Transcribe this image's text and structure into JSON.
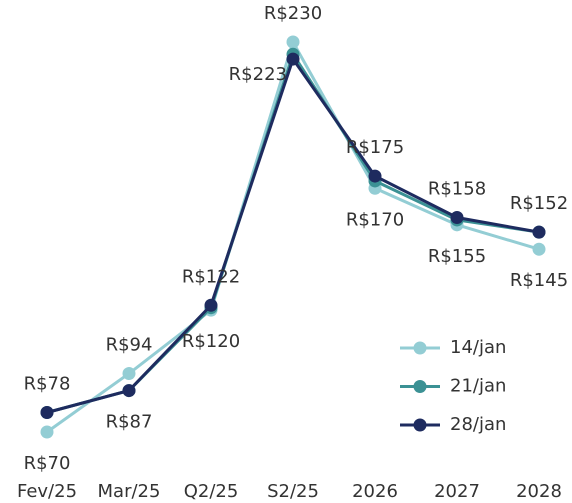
{
  "chart_data": {
    "type": "line",
    "categories": [
      "Fev/25",
      "Mar/25",
      "Q2/25",
      "S2/25",
      "2026",
      "2027",
      "2028"
    ],
    "series": [
      {
        "name": "14/jan",
        "color": "#93cdd4",
        "values": [
          70,
          94,
          120,
          230,
          170,
          155,
          145
        ],
        "value_labels": [
          "R$70",
          "R$94",
          "R$120",
          "R$230",
          "R$170",
          "R$155",
          "R$145"
        ]
      },
      {
        "name": "21/jan",
        "color": "#3b9194",
        "values": [
          78,
          87,
          121,
          225,
          173,
          157,
          152
        ]
      },
      {
        "name": "28/jan",
        "color": "#1e2b5f",
        "values": [
          78,
          87,
          122,
          223,
          175,
          158,
          152
        ],
        "value_labels": [
          "R$78",
          "R$87",
          "R$122",
          "R$223",
          "R$175",
          "R$158",
          "R$152"
        ]
      }
    ],
    "legend": "lower right"
  }
}
